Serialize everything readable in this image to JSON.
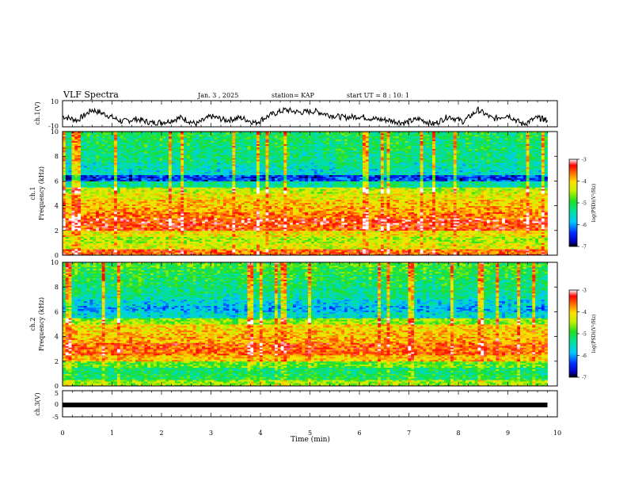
{
  "header": {
    "title": "VLF Spectra",
    "date": "Jan. 3 , 2025",
    "station": "station= KAP",
    "start": "start UT = 8 : 10: 1"
  },
  "colors": {
    "background": "#ffffff",
    "axis": "#000000",
    "trace": "#000000"
  },
  "chart_data": [
    {
      "id": "ch1-waveform",
      "type": "line",
      "ylabel": "ch.1(V)",
      "ylim": [
        -10,
        10
      ],
      "yticklabels": [
        "10",
        "-10"
      ],
      "xlim": [
        0,
        10
      ],
      "series": [
        {
          "name": "ch.1 voltage",
          "x": [
            0,
            0.3,
            0.6,
            0.9,
            1.2,
            1.5,
            1.8,
            2.1,
            2.4,
            2.7,
            3.0,
            3.3,
            3.6,
            3.9,
            4.2,
            4.5,
            4.8,
            5.1,
            5.4,
            5.7,
            6.0,
            6.3,
            6.6,
            6.9,
            7.2,
            7.5,
            7.8,
            8.1,
            8.4,
            8.7,
            9.0,
            9.3,
            9.6,
            9.8
          ],
          "values": [
            -2,
            -5,
            3,
            -1,
            -6,
            -4,
            -7,
            -6,
            -3,
            -8,
            -2,
            -5,
            -3,
            -7,
            -1,
            3,
            1,
            2,
            -1,
            -3,
            -2,
            -4,
            -5,
            -7,
            -4,
            -8,
            -2,
            -6,
            3,
            -4,
            -1,
            -8,
            -3,
            -5
          ]
        }
      ]
    },
    {
      "id": "ch1-spectrogram",
      "type": "heatmap",
      "ylabel": "ch.1\nFrequency (kHz)",
      "ylim": [
        0,
        10
      ],
      "yticklabels": [
        "0",
        "2",
        "4",
        "6",
        "8",
        "10"
      ],
      "xlim": [
        0,
        10
      ],
      "data_extent_min": 9.8,
      "colorbar": {
        "label": "log(PSD)(V²/Hz)",
        "range": [
          -7,
          -3
        ],
        "ticklabels": [
          "-3",
          "-4",
          "-5",
          "-6",
          "-7"
        ]
      },
      "frequency_bands_kHz": [
        0,
        0.5,
        1.0,
        1.5,
        2.0,
        2.5,
        3.0,
        3.5,
        4.0,
        4.5,
        5.0,
        5.5,
        6.0,
        6.5,
        7.0,
        7.5,
        8.0,
        8.5,
        9.0,
        9.5
      ],
      "mean_log_psd": [
        -3.6,
        -4.3,
        -4.5,
        -4.2,
        -3.5,
        -3.4,
        -3.7,
        -3.9,
        -4.0,
        -4.2,
        -4.4,
        -5.4,
        -6.4,
        -5.6,
        -5.5,
        -5.3,
        -5.3,
        -5.2,
        -5.2,
        -5.1
      ]
    },
    {
      "id": "ch2-spectrogram",
      "type": "heatmap",
      "ylabel": "ch.2\nFrequency (kHz)",
      "ylim": [
        0,
        10
      ],
      "yticklabels": [
        "0",
        "2",
        "4",
        "6",
        "8",
        "10"
      ],
      "xlim": [
        0,
        10
      ],
      "data_extent_min": 9.8,
      "colorbar": {
        "label": "log(PSD)(V²/Hz)",
        "range": [
          -7,
          -3
        ],
        "ticklabels": [
          "-3",
          "-4",
          "-5",
          "-6",
          "-7"
        ]
      },
      "frequency_bands_kHz": [
        0,
        0.5,
        1.0,
        1.5,
        2.0,
        2.5,
        3.0,
        3.5,
        4.0,
        4.5,
        5.0,
        5.5,
        6.0,
        6.5,
        7.0,
        7.5,
        8.0,
        8.5,
        9.0,
        9.5
      ],
      "mean_log_psd": [
        -4.6,
        -5.1,
        -5.2,
        -4.8,
        -4.0,
        -3.6,
        -3.6,
        -3.9,
        -4.0,
        -4.1,
        -4.6,
        -5.6,
        -5.9,
        -5.7,
        -5.4,
        -5.3,
        -5.2,
        -5.1,
        -5.0,
        -4.9
      ]
    },
    {
      "id": "ch3-waveform",
      "type": "line",
      "ylabel": "ch.3(V)",
      "ylim": [
        -5,
        5
      ],
      "yticklabels": [
        "5",
        "0",
        "-5"
      ],
      "xlim": [
        0,
        10
      ],
      "xlabel": "Time (min)",
      "xticklabels": [
        "0",
        "1",
        "2",
        "3",
        "4",
        "5",
        "6",
        "7",
        "8",
        "9",
        "10"
      ],
      "series": [
        {
          "name": "ch.3 voltage",
          "x": [
            0,
            9.8
          ],
          "values": [
            0,
            0
          ]
        }
      ]
    }
  ]
}
